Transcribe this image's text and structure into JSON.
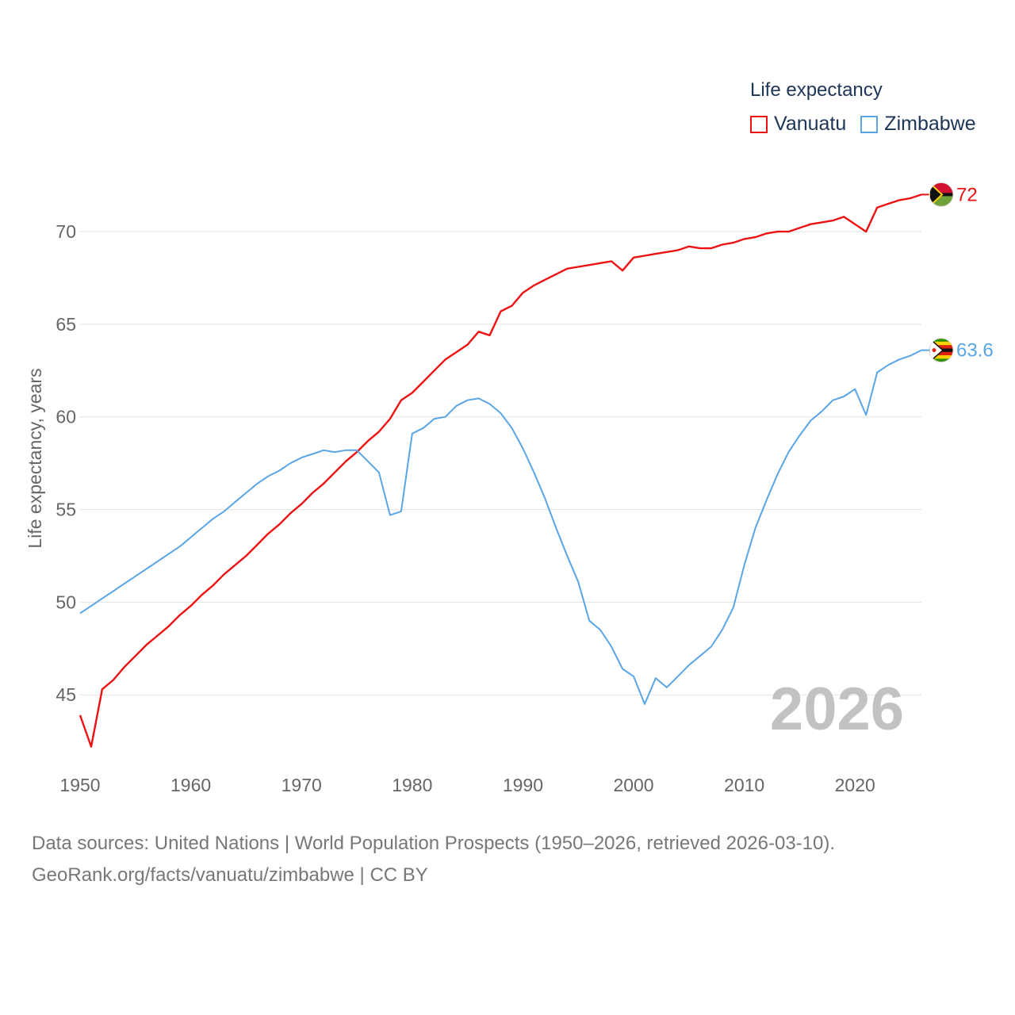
{
  "legend": {
    "title": "Life expectancy",
    "items": [
      {
        "label": "Vanuatu",
        "color": "#ee1111"
      },
      {
        "label": "Zimbabwe",
        "color": "#5aa5e6"
      }
    ]
  },
  "watermark_year": "2026",
  "source": {
    "line1": "Data sources: United Nations | World Population Prospects (1950–2026, retrieved 2026-03-10).",
    "line2": "GeoRank.org/facts/vanuatu/zimbabwe | CC BY"
  },
  "chart_data": {
    "type": "line",
    "title": "Life expectancy",
    "xlabel": "",
    "ylabel": "Life expectancy, years",
    "xlim": [
      1950,
      2026
    ],
    "ylim": [
      41.5,
      73
    ],
    "grid": true,
    "x_ticks": [
      1950,
      1960,
      1970,
      1980,
      1990,
      2000,
      2010,
      2020
    ],
    "y_ticks": [
      45,
      50,
      55,
      60,
      65,
      70
    ],
    "x": [
      1950,
      1951,
      1952,
      1953,
      1954,
      1955,
      1956,
      1957,
      1958,
      1959,
      1960,
      1961,
      1962,
      1963,
      1964,
      1965,
      1966,
      1967,
      1968,
      1969,
      1970,
      1971,
      1972,
      1973,
      1974,
      1975,
      1976,
      1977,
      1978,
      1979,
      1980,
      1981,
      1982,
      1983,
      1984,
      1985,
      1986,
      1987,
      1988,
      1989,
      1990,
      1991,
      1992,
      1993,
      1994,
      1995,
      1996,
      1997,
      1998,
      1999,
      2000,
      2001,
      2002,
      2003,
      2004,
      2005,
      2006,
      2007,
      2008,
      2009,
      2010,
      2011,
      2012,
      2013,
      2014,
      2015,
      2016,
      2017,
      2018,
      2019,
      2020,
      2021,
      2022,
      2023,
      2024,
      2025,
      2026
    ],
    "series": [
      {
        "name": "Vanuatu",
        "color": "#ee1111",
        "end_label": "72",
        "values": [
          43.9,
          42.2,
          45.3,
          45.8,
          46.5,
          47.1,
          47.7,
          48.2,
          48.7,
          49.3,
          49.8,
          50.4,
          50.9,
          51.5,
          52.0,
          52.5,
          53.1,
          53.7,
          54.2,
          54.8,
          55.3,
          55.9,
          56.4,
          57.0,
          57.6,
          58.1,
          58.7,
          59.2,
          59.9,
          60.9,
          61.3,
          61.9,
          62.5,
          63.1,
          63.5,
          63.9,
          64.6,
          64.4,
          65.7,
          66.0,
          66.7,
          67.1,
          67.4,
          67.7,
          68.0,
          68.1,
          68.2,
          68.3,
          68.4,
          67.9,
          68.6,
          68.7,
          68.8,
          68.9,
          69.0,
          69.2,
          69.1,
          69.1,
          69.3,
          69.4,
          69.6,
          69.7,
          69.9,
          70.0,
          70.0,
          70.2,
          70.4,
          70.5,
          70.6,
          70.8,
          70.4,
          70.0,
          71.3,
          71.5,
          71.7,
          71.8,
          72.0
        ]
      },
      {
        "name": "Zimbabwe",
        "color": "#5aa5e6",
        "end_label": "63.6",
        "values": [
          49.4,
          49.8,
          50.2,
          50.6,
          51.0,
          51.4,
          51.8,
          52.2,
          52.6,
          53.0,
          53.5,
          54.0,
          54.5,
          54.9,
          55.4,
          55.9,
          56.4,
          56.8,
          57.1,
          57.5,
          57.8,
          58.0,
          58.2,
          58.1,
          58.2,
          58.2,
          57.6,
          57.0,
          54.7,
          54.9,
          59.1,
          59.4,
          59.9,
          60.0,
          60.6,
          60.9,
          61.0,
          60.7,
          60.2,
          59.4,
          58.3,
          57.0,
          55.6,
          54.0,
          52.5,
          51.1,
          49.0,
          48.5,
          47.6,
          46.4,
          46.0,
          44.5,
          45.9,
          45.4,
          46.0,
          46.6,
          47.1,
          47.6,
          48.5,
          49.7,
          52.0,
          54.0,
          55.5,
          56.9,
          58.1,
          59.0,
          59.8,
          60.3,
          60.9,
          61.1,
          61.5,
          60.1,
          62.4,
          62.8,
          63.1,
          63.3,
          63.6
        ]
      }
    ]
  }
}
